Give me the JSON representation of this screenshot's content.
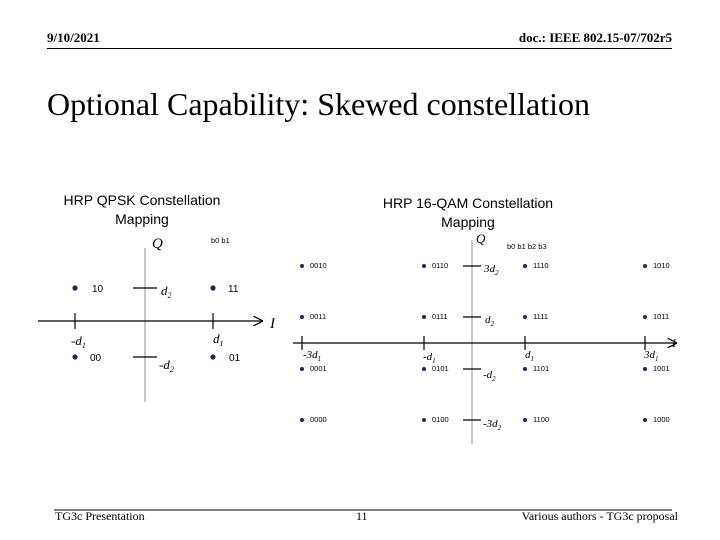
{
  "header": {
    "date": "9/10/2021",
    "doc": "doc.: IEEE 802.15-07/702r5"
  },
  "title": "Optional Capability:  Skewed constellation",
  "qpsk": {
    "title_line1": "HRP QPSK Constellation",
    "title_line2": "Mapping",
    "axis_q": "Q",
    "axis_i": "I",
    "bits_header": "b0 b1",
    "points": [
      {
        "label": "10",
        "i": "-",
        "q": "+"
      },
      {
        "label": "11",
        "i": "+",
        "q": "+"
      },
      {
        "label": "00",
        "i": "-",
        "q": "-"
      },
      {
        "label": "01",
        "i": "+",
        "q": "-"
      }
    ],
    "ticks": {
      "neg_d1": "-d",
      "pos_d1": "d",
      "pos_d2": "d",
      "neg_d2": "-d",
      "sub1": "1",
      "sub2": "2"
    }
  },
  "qam": {
    "title_line1": "HRP 16-QAM Constellation",
    "title_line2": "Mapping",
    "axis_q": "Q",
    "axis_i": "I",
    "bits_header": "b0 b1 b2 b3",
    "rows": [
      [
        "0010",
        "0110",
        "1110",
        "1010"
      ],
      [
        "0011",
        "0111",
        "1111",
        "1011"
      ],
      [
        "0001",
        "0101",
        "1101",
        "1001"
      ],
      [
        "0000",
        "0100",
        "1100",
        "1000"
      ]
    ],
    "ticks": {
      "neg_3d1": "-3d",
      "neg_d1": "-d",
      "pos_d1": "d",
      "pos_3d1": "3d",
      "pos_3d2": "3d",
      "pos_d2": "d",
      "neg_d2": "-d",
      "neg_3d2": "-3d",
      "sub1": "1",
      "sub2": "2"
    }
  },
  "footer": {
    "left": "TG3c Presentation",
    "page": "11",
    "right": "Various authors - TG3c proposal"
  }
}
